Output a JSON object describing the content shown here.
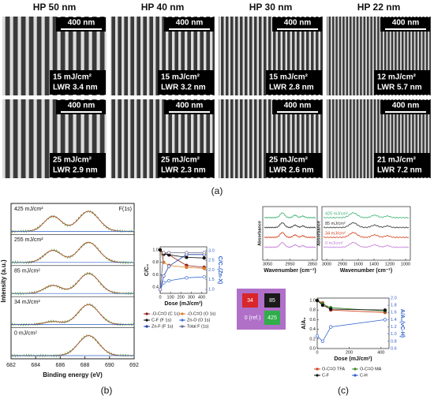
{
  "panel_a": {
    "label": "(a)",
    "columns": [
      {
        "title": "HP 50 nm",
        "images": [
          {
            "scale": "400 nm",
            "dose": "15 mJ/cm²",
            "lwr": "LWR 3.4 nm"
          },
          {
            "scale": "400 nm",
            "dose": "25 mJ/cm²",
            "lwr": "LWR 2.9 nm"
          }
        ]
      },
      {
        "title": "HP 40 nm",
        "images": [
          {
            "scale": "400 nm",
            "dose": "15 mJ/cm²",
            "lwr": "LWR 3.2 nm"
          },
          {
            "scale": "400 nm",
            "dose": "25 mJ/cm²",
            "lwr": "LWR 2.3 nm"
          }
        ]
      },
      {
        "title": "HP 30 nm",
        "images": [
          {
            "scale": "400 nm",
            "dose": "15 mJ/cm²",
            "lwr": "LWR 2.8 nm"
          },
          {
            "scale": "400 nm",
            "dose": "25 mJ/cm²",
            "lwr": "LWR 2.6 nm"
          }
        ]
      },
      {
        "title": "HP 22 nm",
        "images": [
          {
            "scale": "400 nm",
            "dose": "12 mJ/cm²",
            "lwr": "LWR 5.7 nm"
          },
          {
            "scale": "400 nm",
            "dose": "21 mJ/cm²",
            "lwr": "LWR 7.2 nm"
          }
        ]
      }
    ]
  },
  "panel_b": {
    "label": "(b)",
    "peak": "F(1s)",
    "spectra_labels": [
      "425 mJ/cm²",
      "255 mJ/cm²",
      "85 mJ/cm²",
      "34 mJ/cm²",
      "0 mJ/cm²"
    ],
    "x_label": "Binding energy (eV)",
    "y_label": "Intensity (a.u.)",
    "xticks": [
      682,
      684,
      686,
      688,
      690,
      692
    ],
    "xlim": [
      682,
      692
    ],
    "inset": {
      "x_label": "Dose (mJ/cm²)",
      "y_label": "C/C₀",
      "y2_label": "C/C₀(Zn-X)",
      "xlim": [
        0,
        450
      ],
      "ylim": [
        0.3,
        1.05
      ],
      "y2lim": [
        0.8,
        3.2
      ],
      "xticks": [
        0,
        100,
        200,
        300,
        400
      ],
      "yticks": [
        0.4,
        0.6,
        0.8,
        {
          "value": 1,
          "label": "1.0"
        }
      ],
      "y2ticks": [
        {
          "value": 1,
          "label": "1.0"
        },
        1.5,
        {
          "value": 2,
          "label": "2.0"
        },
        2.5,
        {
          "value": 3,
          "label": "3.0"
        }
      ],
      "x": [
        0,
        34,
        85,
        255,
        425
      ],
      "series": [
        {
          "name": "-O-C=O (C 1s)",
          "color": "#8b1a1a",
          "values": [
            1.0,
            0.95,
            0.92,
            0.75,
            0.72
          ]
        },
        {
          "name": "-O-C=O (O 1s)",
          "color": "#e07b2a",
          "values": [
            1.0,
            0.8,
            0.75,
            0.72,
            0.7
          ]
        },
        {
          "name": "C-F (F 1s)",
          "color": "#111111",
          "values": [
            1.0,
            0.93,
            0.92,
            0.88,
            0.87
          ]
        },
        {
          "name": "Zn-O (O 1s)",
          "color": "#3b6fd6",
          "axis": "y2",
          "values": [
            1.0,
            1.35,
            1.45,
            1.6,
            1.65
          ]
        },
        {
          "name": "Zn-F (F 1s)",
          "color": "#1f3fa8",
          "axis": "y2",
          "values": [
            1.0,
            1.7,
            2.2,
            2.8,
            2.8
          ]
        },
        {
          "name": "Total F (1s)",
          "color": "#6a6a8a",
          "axis": "y2",
          "values": [
            1.0,
            2.9,
            2.9,
            2.9,
            2.9
          ]
        }
      ]
    }
  },
  "panel_c": {
    "label": "(c)",
    "ftir_left": {
      "y_label": "Absorbance",
      "x_label": "Wavenumber (cm⁻¹)",
      "xticks": [
        3050,
        2950,
        2850
      ]
    },
    "ftir_right": {
      "y_label": "Absorbance",
      "x_label": "Wavenumber (cm⁻¹)",
      "xticks": [
        3000,
        2900,
        1600,
        1400,
        1200,
        1000
      ],
      "spectra_labels": [
        "425 mJ/cm²",
        "85 mJ/cm²",
        "34 mJ/cm²",
        "0 mJ/cm²"
      ]
    },
    "squares": [
      "34",
      "85",
      "0 (ref.)",
      "425"
    ],
    "chart": {
      "x_label": "Dose (mJ/cm²)",
      "y_label": "A/A₀",
      "y2_label": "A/A₀(νC-H)",
      "xlim": [
        0,
        450
      ],
      "ylim": [
        0,
        1.05
      ],
      "y2lim": [
        0.6,
        2.0
      ],
      "xticks": [
        0,
        200,
        400
      ],
      "yticks": [
        {
          "value": 0,
          "label": "0.0"
        },
        0.2,
        0.4,
        0.6,
        0.8,
        {
          "value": 1,
          "label": "1.0"
        }
      ],
      "y2ticks": [
        0.6,
        0.8,
        {
          "value": 1,
          "label": "1.0"
        },
        1.2,
        1.4,
        1.6,
        1.8,
        {
          "value": 2,
          "label": "2.0"
        }
      ],
      "x": [
        0,
        34,
        85,
        425
      ],
      "series": [
        {
          "name": "O-C=O TFA",
          "color": "#d0421b",
          "values": [
            1.0,
            0.95,
            0.8,
            0.75
          ]
        },
        {
          "name": "O-C=O MA",
          "color": "#3a8a2a",
          "values": [
            1.0,
            0.93,
            0.85,
            0.78
          ]
        },
        {
          "name": "C-F",
          "color": "#111111",
          "values": [
            1.0,
            0.9,
            0.82,
            0.8
          ]
        },
        {
          "name": "C-H",
          "color": "#2f5fc8",
          "axis": "y2",
          "values": [
            0.95,
            0.8,
            1.2,
            1.4
          ]
        }
      ]
    }
  }
}
